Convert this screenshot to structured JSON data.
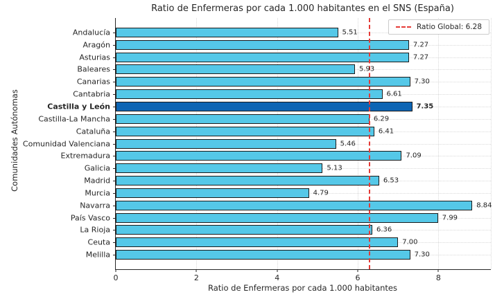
{
  "chart_data": {
    "type": "bar",
    "orientation": "horizontal",
    "title": "Ratio de Enfermeras por cada 1.000 habitantes en el SNS (España)",
    "xlabel": "Ratio de Enfermeras por cada 1.000 habitantes",
    "ylabel": "Comunidades Autónomas",
    "categories": [
      "Andalucía",
      "Aragón",
      "Asturias",
      "Baleares",
      "Canarias",
      "Cantabria",
      "Castilla y León",
      "Castilla-La Mancha",
      "Cataluña",
      "Comunidad Valenciana",
      "Extremadura",
      "Galicia",
      "Madrid",
      "Murcia",
      "Navarra",
      "País Vasco",
      "La Rioja",
      "Ceuta",
      "Melilla"
    ],
    "values": [
      5.51,
      7.27,
      7.27,
      5.93,
      7.3,
      6.61,
      7.35,
      6.29,
      6.41,
      5.46,
      7.09,
      5.13,
      6.53,
      4.79,
      8.84,
      7.99,
      6.36,
      7.0,
      7.3
    ],
    "highlight_index": 6,
    "highlight_category": "Castilla y León",
    "xlim": [
      0,
      9.3
    ],
    "xticks": [
      0,
      2,
      4,
      6,
      8
    ],
    "grid": "dotted",
    "legend": {
      "position": "upper-right",
      "entries": [
        "Ratio Global: 6.28"
      ]
    },
    "reference_line": {
      "value": 6.28,
      "style": "dashed",
      "label": "Ratio Global: 6.28"
    },
    "colors": {
      "bar": "#55c8e8",
      "highlight_bar": "#0d65b4",
      "bar_edge": "#1a1a1a",
      "reference_line": "#e53935",
      "grid": "#d9d9d9",
      "axis": "#262626"
    }
  }
}
